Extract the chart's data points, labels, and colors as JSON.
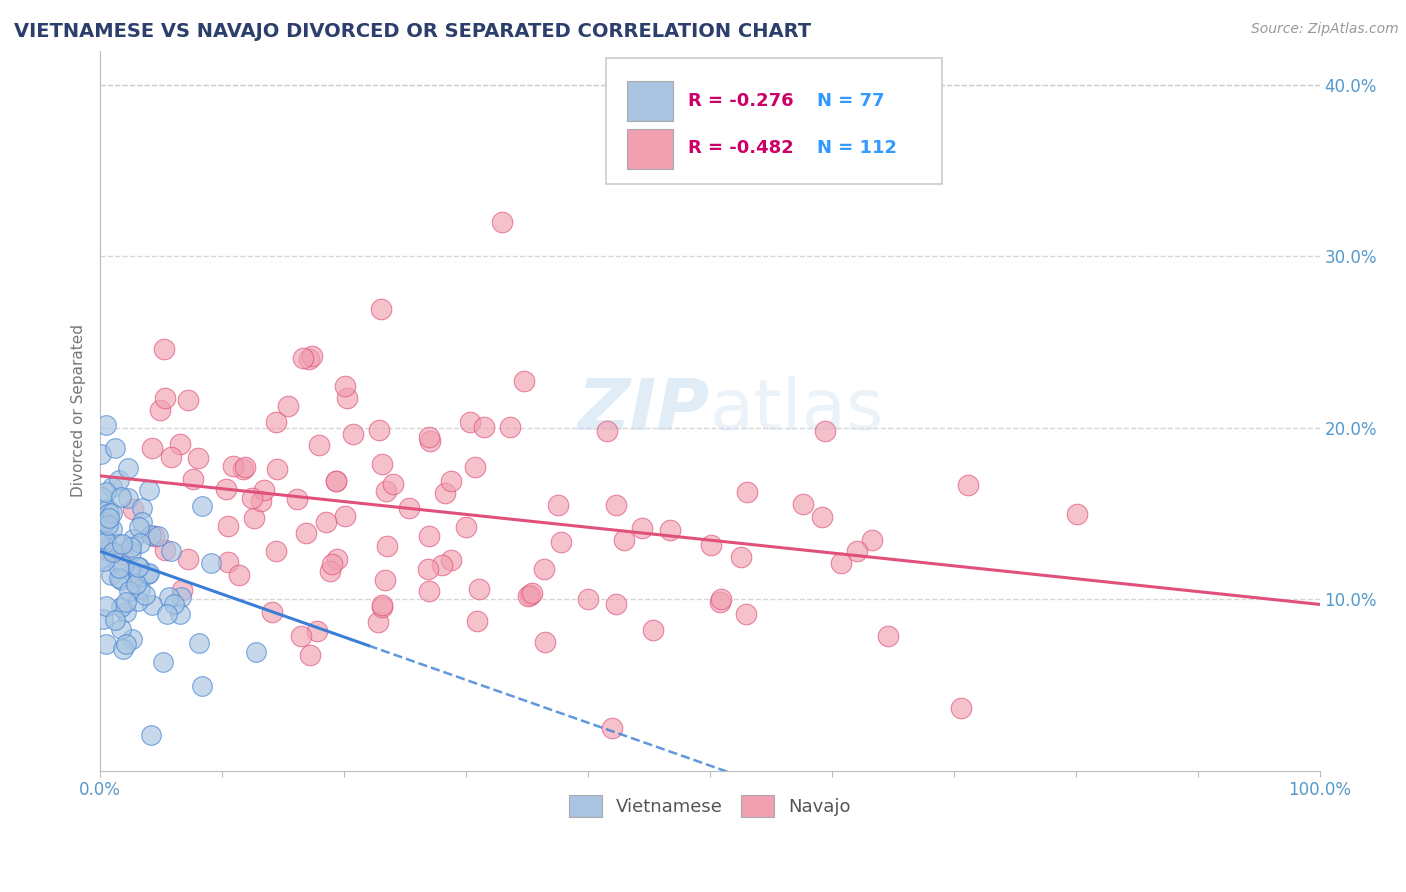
{
  "title": "VIETNAMESE VS NAVAJO DIVORCED OR SEPARATED CORRELATION CHART",
  "source_text": "Source: ZipAtlas.com",
  "ylabel": "Divorced or Separated",
  "xlim": [
    0.0,
    1.0
  ],
  "ylim": [
    0.0,
    0.42
  ],
  "xticks": [
    0.0,
    0.1,
    0.2,
    0.3,
    0.4,
    0.5,
    0.6,
    0.7,
    0.8,
    0.9,
    1.0
  ],
  "yticks": [
    0.0,
    0.1,
    0.2,
    0.3,
    0.4
  ],
  "viet_R": -0.276,
  "viet_N": 77,
  "navajo_R": -0.482,
  "navajo_N": 112,
  "viet_color": "#a8c4e0",
  "navajo_color": "#f0a0b0",
  "viet_line_color": "#3a7fd5",
  "navajo_line_color": "#e0507a",
  "watermark_color": "#c8ddf0",
  "background_color": "#ffffff",
  "grid_color": "#cccccc",
  "title_color": "#2c3e6b",
  "legend_R_color": "#cc0066",
  "legend_N_color": "#3399ff",
  "tick_color": "#5599cc",
  "ylabel_color": "#777777"
}
